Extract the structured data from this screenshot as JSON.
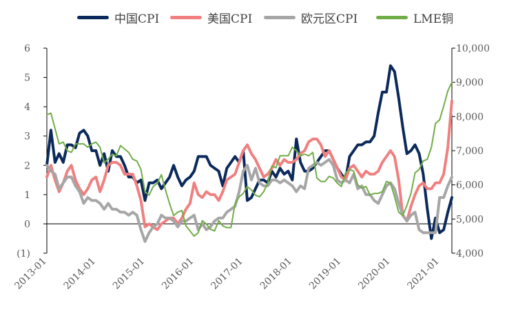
{
  "chart_data": {
    "type": "line",
    "title": "",
    "xlabel": "",
    "ylabel": "",
    "x_tick_labels": [
      "2013-01",
      "2014-01",
      "2015-01",
      "2016-01",
      "2017-01",
      "2018-01",
      "2019-01",
      "2020-01",
      "2021-01"
    ],
    "left_axis": {
      "ylim": [
        -1,
        6
      ],
      "tick_labels": [
        "(1)",
        "0",
        "1",
        "2",
        "3",
        "4",
        "5",
        "6"
      ],
      "negative_tick_color": "#C00000"
    },
    "right_axis": {
      "ylim": [
        4000,
        10000
      ],
      "tick_labels": [
        "4,000",
        "5,000",
        "6,000",
        "7,000",
        "8,000",
        "9,000",
        "10,000"
      ]
    },
    "grid": false,
    "legend_position": "top",
    "series": [
      {
        "name": "中国CPI",
        "axis": "left",
        "color": "#0B2A5B",
        "width": 4,
        "x": [
          "2013-01",
          "2013-02",
          "2013-03",
          "2013-04",
          "2013-05",
          "2013-06",
          "2013-07",
          "2013-08",
          "2013-09",
          "2013-10",
          "2013-11",
          "2013-12",
          "2014-01",
          "2014-02",
          "2014-03",
          "2014-04",
          "2014-05",
          "2014-06",
          "2014-07",
          "2014-08",
          "2014-09",
          "2014-10",
          "2014-11",
          "2014-12",
          "2015-01",
          "2015-02",
          "2015-03",
          "2015-04",
          "2015-05",
          "2015-06",
          "2015-07",
          "2015-08",
          "2015-09",
          "2015-10",
          "2015-11",
          "2015-12",
          "2016-01",
          "2016-02",
          "2016-03",
          "2016-04",
          "2016-05",
          "2016-06",
          "2016-07",
          "2016-08",
          "2016-09",
          "2016-10",
          "2016-11",
          "2016-12",
          "2017-01",
          "2017-02",
          "2017-03",
          "2017-04",
          "2017-05",
          "2017-06",
          "2017-07",
          "2017-08",
          "2017-09",
          "2017-10",
          "2017-11",
          "2017-12",
          "2018-01",
          "2018-02",
          "2018-03",
          "2018-04",
          "2018-05",
          "2018-06",
          "2018-07",
          "2018-08",
          "2018-09",
          "2018-10",
          "2018-11",
          "2018-12",
          "2019-01",
          "2019-02",
          "2019-03",
          "2019-04",
          "2019-05",
          "2019-06",
          "2019-07",
          "2019-08",
          "2019-09",
          "2019-10",
          "2019-11",
          "2019-12",
          "2020-01",
          "2020-02",
          "2020-03",
          "2020-04",
          "2020-05",
          "2020-06",
          "2020-07",
          "2020-08",
          "2020-09",
          "2020-10",
          "2020-11",
          "2020-12",
          "2021-01",
          "2021-02",
          "2021-03",
          "2021-04"
        ],
        "values": [
          2.0,
          3.2,
          2.1,
          2.4,
          2.1,
          2.7,
          2.7,
          2.6,
          3.1,
          3.2,
          3.0,
          2.5,
          2.5,
          2.0,
          2.4,
          1.8,
          2.5,
          2.3,
          2.3,
          2.0,
          1.6,
          1.6,
          1.4,
          1.5,
          0.8,
          1.4,
          1.4,
          1.5,
          1.2,
          1.4,
          1.6,
          2.0,
          1.6,
          1.3,
          1.5,
          1.6,
          1.8,
          2.3,
          2.3,
          2.3,
          2.0,
          1.9,
          1.8,
          1.3,
          1.9,
          2.1,
          2.3,
          2.1,
          2.5,
          0.8,
          0.9,
          1.2,
          1.5,
          1.5,
          1.4,
          1.8,
          1.6,
          1.9,
          1.7,
          1.8,
          1.5,
          2.9,
          2.1,
          1.8,
          1.8,
          1.9,
          2.1,
          2.3,
          2.5,
          2.5,
          2.2,
          1.9,
          1.7,
          1.5,
          2.3,
          2.5,
          2.7,
          2.7,
          2.8,
          2.8,
          3.0,
          3.8,
          4.5,
          4.5,
          5.4,
          5.2,
          4.3,
          3.3,
          2.4,
          2.5,
          2.7,
          2.4,
          1.7,
          0.5,
          -0.5,
          0.2,
          -0.3,
          -0.2,
          0.4,
          0.9
        ]
      },
      {
        "name": "美国CPI",
        "axis": "left",
        "color": "#F08080",
        "width": 4,
        "x": [
          "2013-01",
          "2013-02",
          "2013-03",
          "2013-04",
          "2013-05",
          "2013-06",
          "2013-07",
          "2013-08",
          "2013-09",
          "2013-10",
          "2013-11",
          "2013-12",
          "2014-01",
          "2014-02",
          "2014-03",
          "2014-04",
          "2014-05",
          "2014-06",
          "2014-07",
          "2014-08",
          "2014-09",
          "2014-10",
          "2014-11",
          "2014-12",
          "2015-01",
          "2015-02",
          "2015-03",
          "2015-04",
          "2015-05",
          "2015-06",
          "2015-07",
          "2015-08",
          "2015-09",
          "2015-10",
          "2015-11",
          "2015-12",
          "2016-01",
          "2016-02",
          "2016-03",
          "2016-04",
          "2016-05",
          "2016-06",
          "2016-07",
          "2016-08",
          "2016-09",
          "2016-10",
          "2016-11",
          "2016-12",
          "2017-01",
          "2017-02",
          "2017-03",
          "2017-04",
          "2017-05",
          "2017-06",
          "2017-07",
          "2017-08",
          "2017-09",
          "2017-10",
          "2017-11",
          "2017-12",
          "2018-01",
          "2018-02",
          "2018-03",
          "2018-04",
          "2018-05",
          "2018-06",
          "2018-07",
          "2018-08",
          "2018-09",
          "2018-10",
          "2018-11",
          "2018-12",
          "2019-01",
          "2019-02",
          "2019-03",
          "2019-04",
          "2019-05",
          "2019-06",
          "2019-07",
          "2019-08",
          "2019-09",
          "2019-10",
          "2019-11",
          "2019-12",
          "2020-01",
          "2020-02",
          "2020-03",
          "2020-04",
          "2020-05",
          "2020-06",
          "2020-07",
          "2020-08",
          "2020-09",
          "2020-10",
          "2020-11",
          "2020-12",
          "2021-01",
          "2021-02",
          "2021-03",
          "2021-04"
        ],
        "values": [
          1.6,
          2.0,
          1.5,
          1.1,
          1.4,
          1.8,
          2.0,
          1.5,
          1.2,
          1.0,
          1.2,
          1.5,
          1.6,
          1.1,
          1.5,
          2.0,
          2.1,
          2.1,
          2.0,
          1.7,
          1.7,
          1.7,
          1.3,
          0.8,
          -0.1,
          0.0,
          -0.1,
          -0.2,
          0.0,
          0.1,
          0.2,
          0.2,
          0.0,
          0.2,
          0.5,
          0.7,
          1.4,
          1.0,
          0.9,
          1.1,
          1.0,
          1.0,
          0.8,
          1.1,
          1.5,
          1.6,
          1.7,
          2.1,
          2.5,
          2.7,
          2.4,
          2.2,
          1.9,
          1.6,
          1.7,
          1.9,
          2.2,
          2.0,
          2.2,
          2.1,
          2.1,
          2.2,
          2.4,
          2.5,
          2.8,
          2.9,
          2.9,
          2.7,
          2.3,
          2.5,
          2.2,
          1.9,
          1.6,
          1.5,
          1.9,
          2.0,
          1.8,
          1.6,
          1.8,
          1.7,
          1.7,
          1.8,
          2.1,
          2.3,
          2.5,
          2.3,
          1.5,
          0.3,
          0.1,
          0.6,
          1.0,
          1.3,
          1.4,
          1.2,
          1.2,
          1.4,
          1.4,
          1.7,
          2.6,
          4.2
        ]
      },
      {
        "name": "欧元区CPI",
        "axis": "left",
        "color": "#A6A6A6",
        "width": 4,
        "x": [
          "2013-01",
          "2013-02",
          "2013-03",
          "2013-04",
          "2013-05",
          "2013-06",
          "2013-07",
          "2013-08",
          "2013-09",
          "2013-10",
          "2013-11",
          "2013-12",
          "2014-01",
          "2014-02",
          "2014-03",
          "2014-04",
          "2014-05",
          "2014-06",
          "2014-07",
          "2014-08",
          "2014-09",
          "2014-10",
          "2014-11",
          "2014-12",
          "2015-01",
          "2015-02",
          "2015-03",
          "2015-04",
          "2015-05",
          "2015-06",
          "2015-07",
          "2015-08",
          "2015-09",
          "2015-10",
          "2015-11",
          "2015-12",
          "2016-01",
          "2016-02",
          "2016-03",
          "2016-04",
          "2016-05",
          "2016-06",
          "2016-07",
          "2016-08",
          "2016-09",
          "2016-10",
          "2016-11",
          "2016-12",
          "2017-01",
          "2017-02",
          "2017-03",
          "2017-04",
          "2017-05",
          "2017-06",
          "2017-07",
          "2017-08",
          "2017-09",
          "2017-10",
          "2017-11",
          "2017-12",
          "2018-01",
          "2018-02",
          "2018-03",
          "2018-04",
          "2018-05",
          "2018-06",
          "2018-07",
          "2018-08",
          "2018-09",
          "2018-10",
          "2018-11",
          "2018-12",
          "2019-01",
          "2019-02",
          "2019-03",
          "2019-04",
          "2019-05",
          "2019-06",
          "2019-07",
          "2019-08",
          "2019-09",
          "2019-10",
          "2019-11",
          "2019-12",
          "2020-01",
          "2020-02",
          "2020-03",
          "2020-04",
          "2020-05",
          "2020-06",
          "2020-07",
          "2020-08",
          "2020-09",
          "2020-10",
          "2020-11",
          "2020-12",
          "2021-01",
          "2021-02",
          "2021-03",
          "2021-04"
        ],
        "values": [
          2.0,
          1.8,
          1.7,
          1.2,
          1.4,
          1.6,
          1.6,
          1.3,
          1.1,
          0.7,
          0.9,
          0.8,
          0.8,
          0.7,
          0.5,
          0.7,
          0.5,
          0.5,
          0.4,
          0.4,
          0.3,
          0.4,
          0.3,
          -0.2,
          -0.6,
          -0.3,
          -0.1,
          0.0,
          0.3,
          0.2,
          0.2,
          0.1,
          -0.1,
          0.1,
          0.1,
          0.2,
          0.3,
          -0.2,
          0.0,
          -0.2,
          -0.1,
          0.1,
          0.2,
          0.2,
          0.4,
          0.5,
          0.6,
          1.1,
          1.8,
          2.0,
          1.5,
          1.9,
          1.4,
          1.3,
          1.3,
          1.5,
          1.5,
          1.4,
          1.5,
          1.4,
          1.3,
          1.1,
          1.3,
          1.2,
          1.9,
          2.0,
          2.1,
          2.0,
          2.1,
          2.2,
          2.0,
          1.5,
          1.4,
          1.5,
          1.4,
          1.7,
          1.2,
          1.3,
          1.0,
          1.0,
          0.8,
          0.7,
          1.0,
          1.3,
          1.4,
          1.2,
          0.7,
          0.3,
          0.1,
          0.3,
          0.4,
          -0.2,
          -0.3,
          -0.3,
          -0.3,
          -0.3,
          0.9,
          0.9,
          1.3,
          1.6
        ]
      },
      {
        "name": "LME铜",
        "axis": "right",
        "color": "#70AD47",
        "width": 2,
        "x": [
          "2013-01",
          "2013-02",
          "2013-03",
          "2013-04",
          "2013-05",
          "2013-06",
          "2013-07",
          "2013-08",
          "2013-09",
          "2013-10",
          "2013-11",
          "2013-12",
          "2014-01",
          "2014-02",
          "2014-03",
          "2014-04",
          "2014-05",
          "2014-06",
          "2014-07",
          "2014-08",
          "2014-09",
          "2014-10",
          "2014-11",
          "2014-12",
          "2015-01",
          "2015-02",
          "2015-03",
          "2015-04",
          "2015-05",
          "2015-06",
          "2015-07",
          "2015-08",
          "2015-09",
          "2015-10",
          "2015-11",
          "2015-12",
          "2016-01",
          "2016-02",
          "2016-03",
          "2016-04",
          "2016-05",
          "2016-06",
          "2016-07",
          "2016-08",
          "2016-09",
          "2016-10",
          "2016-11",
          "2016-12",
          "2017-01",
          "2017-02",
          "2017-03",
          "2017-04",
          "2017-05",
          "2017-06",
          "2017-07",
          "2017-08",
          "2017-09",
          "2017-10",
          "2017-11",
          "2017-12",
          "2018-01",
          "2018-02",
          "2018-03",
          "2018-04",
          "2018-05",
          "2018-06",
          "2018-07",
          "2018-08",
          "2018-09",
          "2018-10",
          "2018-11",
          "2018-12",
          "2019-01",
          "2019-02",
          "2019-03",
          "2019-04",
          "2019-05",
          "2019-06",
          "2019-07",
          "2019-08",
          "2019-09",
          "2019-10",
          "2019-11",
          "2019-12",
          "2020-01",
          "2020-02",
          "2020-03",
          "2020-04",
          "2020-05",
          "2020-06",
          "2020-07",
          "2020-08",
          "2020-09",
          "2020-10",
          "2020-11",
          "2020-12",
          "2021-01",
          "2021-02",
          "2021-03",
          "2021-04"
        ],
        "values": [
          8050,
          8100,
          7650,
          7200,
          7250,
          7000,
          6950,
          7200,
          7200,
          7200,
          7100,
          7200,
          7250,
          7100,
          6650,
          6750,
          6900,
          6850,
          7150,
          7050,
          6950,
          6750,
          6700,
          6450,
          5800,
          5700,
          5950,
          6050,
          6300,
          5850,
          5450,
          5100,
          5200,
          5250,
          4800,
          4650,
          4500,
          4600,
          4950,
          4850,
          4700,
          4650,
          4950,
          4800,
          4750,
          4750,
          5450,
          5650,
          5750,
          5950,
          5850,
          5700,
          5650,
          5800,
          6050,
          6550,
          6500,
          6850,
          6850,
          6850,
          7100,
          7000,
          6850,
          6900,
          6850,
          6950,
          6200,
          6100,
          6100,
          6250,
          6200,
          6050,
          5950,
          6350,
          6450,
          6400,
          6000,
          5900,
          5950,
          5700,
          5750,
          5750,
          5800,
          6100,
          6050,
          5650,
          5200,
          5100,
          5400,
          5750,
          6350,
          6450,
          6700,
          6750,
          7100,
          7800,
          7900,
          8300,
          8750,
          9000
        ]
      }
    ]
  }
}
